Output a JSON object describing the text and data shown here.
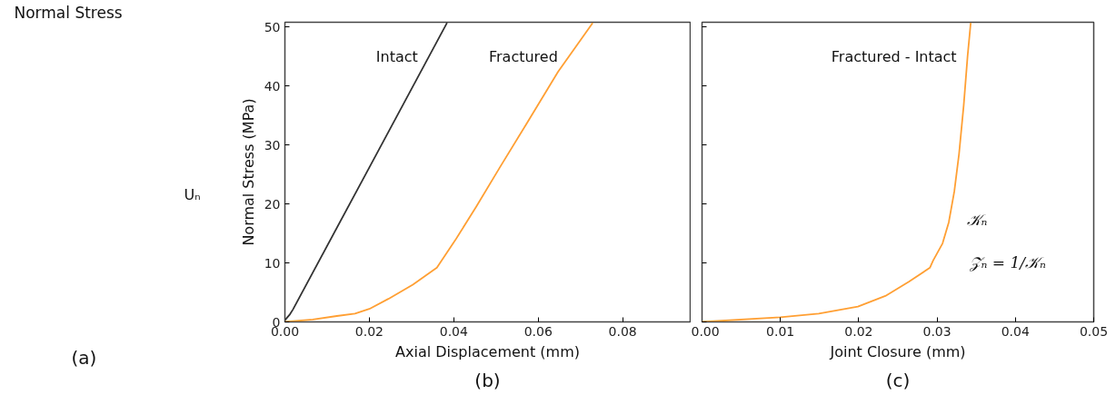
{
  "chart_data": [
    {
      "type": "other",
      "annotations": [
        "Normal Stress",
        "Uₙ",
        "(a)"
      ]
    },
    {
      "type": "line",
      "xlabel": "Axial Displacement (mm)",
      "ylabel": "Normal Stress (MPa)",
      "xlim": [
        0,
        0.096
      ],
      "ylim": [
        0,
        50.8
      ],
      "xticks": [
        {
          "value": 0,
          "label": "0.00"
        },
        0.02,
        0.04,
        0.06,
        0.08
      ],
      "yticks": [
        0,
        10,
        20,
        30,
        40,
        50
      ],
      "grid": false,
      "marker": "none",
      "line_style": "solid",
      "annotations": [
        "(b)"
      ],
      "series": [
        {
          "name": "Intact",
          "color": "#333333",
          "x": [
            0,
            0.0012,
            0.0019,
            0.02,
            0.0384
          ],
          "values": [
            0.3,
            1.3,
            2.1,
            26.2,
            50.7
          ]
        },
        {
          "name": "Fractured",
          "color": "#ff9f33",
          "x": [
            0,
            0.0066,
            0.0123,
            0.0166,
            0.02,
            0.0245,
            0.0303,
            0.036,
            0.0403,
            0.0453,
            0.051,
            0.0575,
            0.0647,
            0.0729
          ],
          "values": [
            0,
            0.4,
            1.0,
            1.4,
            2.2,
            3.9,
            6.3,
            9.2,
            13.8,
            19.5,
            26.3,
            33.9,
            42.4,
            50.7
          ]
        }
      ]
    },
    {
      "type": "line",
      "xlabel": "Joint Closure (mm)",
      "xlim": [
        0,
        0.05
      ],
      "ylim": [
        0,
        50.8
      ],
      "xticks": [
        {
          "value": 0,
          "label": "0.00"
        },
        0.01,
        0.02,
        0.03,
        0.04,
        0.05
      ],
      "yticks": [
        0,
        10,
        20,
        30,
        40,
        50
      ],
      "tick_labels": "x",
      "grid": false,
      "marker": "none",
      "line_style": "solid",
      "annotations": [
        "𝒦ₙ",
        "𝒵ₙ = 1/𝒦ₙ",
        "(c)"
      ],
      "series": [
        {
          "name": "Fractured - Intact",
          "color": "#ff9f33",
          "x": [
            0,
            0.01,
            0.0149,
            0.0199,
            0.0234,
            0.0264,
            0.0291,
            0.0295,
            0.0307,
            0.0315,
            0.0322,
            0.0328,
            0.0334,
            0.0339,
            0.0343
          ],
          "values": [
            0,
            0.8,
            1.4,
            2.6,
            4.4,
            6.8,
            9.2,
            10.4,
            13.3,
            16.9,
            22.1,
            28.4,
            36.7,
            45.1,
            50.7
          ]
        }
      ]
    }
  ]
}
